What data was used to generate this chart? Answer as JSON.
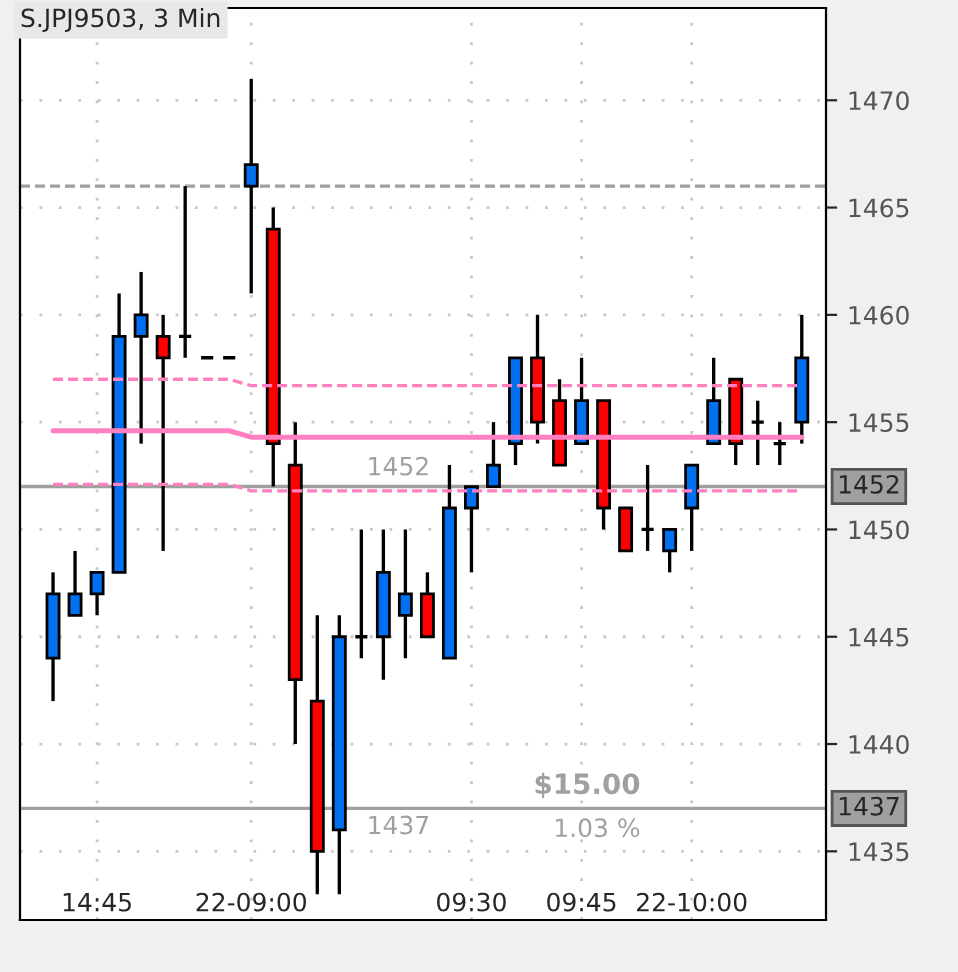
{
  "chart_data": {
    "type": "candlestick",
    "title": "S.JPJ9503, 3 Min",
    "categories": [
      null,
      null,
      "14:45",
      null,
      null,
      null,
      null,
      null,
      null,
      "22-09:00",
      null,
      null,
      null,
      null,
      null,
      null,
      null,
      null,
      null,
      "09:30",
      null,
      null,
      null,
      null,
      "09:45",
      null,
      null,
      null,
      null,
      "22-10:00",
      null,
      null,
      null,
      null,
      null
    ],
    "ohlc": [
      [
        1444,
        1448,
        1442,
        1447
      ],
      [
        1446,
        1449,
        1446,
        1447
      ],
      [
        1447,
        1448,
        1446,
        1448
      ],
      [
        1448,
        1461,
        1448,
        1459
      ],
      [
        1459,
        1462,
        1454,
        1460
      ],
      [
        1459,
        1460,
        1449,
        1458
      ],
      [
        1459,
        1466,
        1458,
        1459
      ],
      [
        1458,
        1458,
        1458,
        1458
      ],
      [
        1458,
        1458,
        1458,
        1458
      ],
      [
        1466,
        1471,
        1461,
        1467
      ],
      [
        1464,
        1465,
        1452,
        1454
      ],
      [
        1453,
        1455,
        1440,
        1443
      ],
      [
        1442,
        1446,
        1433,
        1435
      ],
      [
        1436,
        1446,
        1433,
        1445
      ],
      [
        1445,
        1450,
        1444,
        1445
      ],
      [
        1445,
        1450,
        1443,
        1448
      ],
      [
        1446,
        1450,
        1444,
        1447
      ],
      [
        1447,
        1448,
        1445,
        1445
      ],
      [
        1444,
        1453,
        1444,
        1451
      ],
      [
        1451,
        1452,
        1448,
        1452
      ],
      [
        1452,
        1455,
        1452,
        1453
      ],
      [
        1454,
        1458,
        1453,
        1458
      ],
      [
        1458,
        1460,
        1454,
        1455
      ],
      [
        1456,
        1457,
        1453,
        1453
      ],
      [
        1454,
        1458,
        1454,
        1456
      ],
      [
        1456,
        1456,
        1450,
        1451
      ],
      [
        1451,
        1451,
        1449,
        1449
      ],
      [
        1450,
        1453,
        1449,
        1450
      ],
      [
        1449,
        1450,
        1448,
        1450
      ],
      [
        1451,
        1453,
        1449,
        1453
      ],
      [
        1454,
        1458,
        1454,
        1456
      ],
      [
        1457,
        1457,
        1453,
        1454
      ],
      [
        1455,
        1456,
        1453,
        1455
      ],
      [
        1454,
        1455,
        1453,
        1454
      ],
      [
        1455,
        1460,
        1454,
        1458
      ]
    ],
    "colors": [
      "#0070f0",
      "#0070f0",
      "#0070f0",
      "#0070f0",
      "#0070f0",
      "#ff0000",
      "#000000",
      "#000000",
      "#000000",
      "#0070f0",
      "#ff0000",
      "#ff0000",
      "#ff0000",
      "#0070f0",
      "#000000",
      "#0070f0",
      "#0070f0",
      "#ff0000",
      "#0070f0",
      "#0070f0",
      "#0070f0",
      "#0070f0",
      "#ff0000",
      "#ff0000",
      "#0070f0",
      "#ff0000",
      "#ff0000",
      "#000000",
      "#0070f0",
      "#0070f0",
      "#0070f0",
      "#ff0000",
      "#000000",
      "#000000",
      "#0070f0"
    ],
    "series": [
      {
        "type": "line",
        "color": "#ff80c0",
        "line_style": "dashed",
        "values": [
          1457.0,
          1457.0,
          1457.0,
          1457.0,
          1457.0,
          1457.0,
          1457.0,
          1457.0,
          1457.0,
          1456.7,
          1456.7,
          1456.7,
          1456.7,
          1456.7,
          1456.7,
          1456.7,
          1456.7,
          1456.7,
          1456.7,
          1456.7,
          1456.7,
          1456.7,
          1456.7,
          1456.7,
          1456.7,
          1456.7,
          1456.7,
          1456.7,
          1456.7,
          1456.7,
          1456.7,
          1456.7,
          1456.7,
          1456.7,
          1456.7
        ]
      },
      {
        "type": "line",
        "color": "#ff80c0",
        "line_style": "solid",
        "values": [
          1454.6,
          1454.6,
          1454.6,
          1454.6,
          1454.6,
          1454.6,
          1454.6,
          1454.6,
          1454.6,
          1454.3,
          1454.3,
          1454.3,
          1454.3,
          1454.3,
          1454.3,
          1454.3,
          1454.3,
          1454.3,
          1454.3,
          1454.3,
          1454.3,
          1454.3,
          1454.3,
          1454.3,
          1454.3,
          1454.3,
          1454.3,
          1454.3,
          1454.3,
          1454.3,
          1454.3,
          1454.3,
          1454.3,
          1454.3,
          1454.3
        ]
      },
      {
        "type": "line",
        "color": "#ff80c0",
        "line_style": "dashed",
        "values": [
          1452.1,
          1452.1,
          1452.1,
          1452.1,
          1452.1,
          1452.1,
          1452.1,
          1452.1,
          1452.1,
          1451.8,
          1451.8,
          1451.8,
          1451.8,
          1451.8,
          1451.8,
          1451.8,
          1451.8,
          1451.8,
          1451.8,
          1451.8,
          1451.8,
          1451.8,
          1451.8,
          1451.8,
          1451.8,
          1451.8,
          1451.8,
          1451.8,
          1451.8,
          1451.8,
          1451.8,
          1451.8,
          1451.8,
          1451.8,
          1451.8
        ]
      }
    ],
    "ylim": [
      1431.8,
      1474.3
    ],
    "yticks": [
      1435,
      1440,
      1445,
      1450,
      1455,
      1460,
      1465,
      1470
    ],
    "ref_lines": [
      {
        "axis": "y",
        "value": 1466,
        "color": "#a0a0a0",
        "line_style": "dashed"
      },
      {
        "axis": "y",
        "value": 1452,
        "label": "1452",
        "color": "#a0a0a0",
        "line_style": "solid"
      },
      {
        "axis": "y",
        "value": 1437,
        "label": "1437",
        "color": "#a0a0a0",
        "line_style": "solid"
      }
    ],
    "annotations": [
      "1452",
      "1437",
      "$15.00",
      "1.03 %"
    ],
    "grid": true,
    "legend": false
  }
}
